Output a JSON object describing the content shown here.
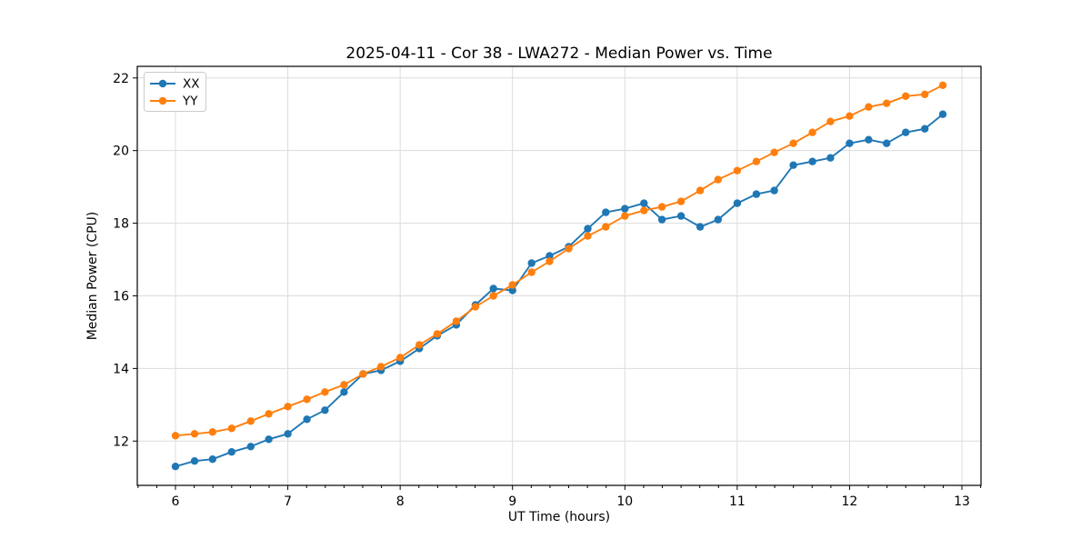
{
  "figure": {
    "title": "2025-04-11 - Cor 38 - LWA272 - Median Power vs. Time",
    "xlabel": "UT Time (hours)",
    "ylabel": "Median Power (CPU)"
  },
  "legend": {
    "entries": [
      {
        "label": "XX",
        "color": "#1f77b4"
      },
      {
        "label": "YY",
        "color": "#ff7f0e"
      }
    ]
  },
  "colors": {
    "series_xx": "#1f77b4",
    "series_yy": "#ff7f0e",
    "grid": "#dcdcdc",
    "spine": "#000000",
    "background": "#ffffff",
    "legend_border": "#cccccc"
  },
  "chart_data": {
    "type": "line",
    "title": "2025-04-11 - Cor 38 - LWA272 - Median Power vs. Time",
    "xlabel": "UT Time (hours)",
    "ylabel": "Median Power (CPU)",
    "xlim": [
      5.66,
      13.17
    ],
    "ylim": [
      10.78,
      22.32
    ],
    "xticks": [
      6,
      7,
      8,
      9,
      10,
      11,
      12,
      13
    ],
    "yticks": [
      12,
      14,
      16,
      18,
      20,
      22
    ],
    "minor_xtick_step": 0.16667,
    "grid": true,
    "legend_position": "upper left",
    "marker": "circle",
    "x": [
      6.0,
      6.17,
      6.33,
      6.5,
      6.67,
      6.83,
      7.0,
      7.17,
      7.33,
      7.5,
      7.67,
      7.83,
      8.0,
      8.17,
      8.33,
      8.5,
      8.67,
      8.83,
      9.0,
      9.17,
      9.33,
      9.5,
      9.67,
      9.83,
      10.0,
      10.17,
      10.33,
      10.5,
      10.67,
      10.83,
      11.0,
      11.17,
      11.33,
      11.5,
      11.67,
      11.83,
      12.0,
      12.17,
      12.33,
      12.5,
      12.67,
      12.83
    ],
    "series": [
      {
        "name": "XX",
        "color": "#1f77b4",
        "values": [
          11.3,
          11.45,
          11.5,
          11.7,
          11.85,
          12.05,
          12.2,
          12.6,
          12.85,
          13.35,
          13.85,
          13.95,
          14.2,
          14.55,
          14.9,
          15.2,
          15.75,
          16.2,
          16.15,
          16.9,
          17.1,
          17.35,
          17.85,
          18.3,
          18.4,
          18.55,
          18.1,
          18.2,
          17.9,
          18.1,
          18.55,
          18.8,
          18.9,
          19.6,
          19.7,
          19.8,
          20.2,
          20.3,
          20.2,
          20.5,
          20.6,
          21.0
        ]
      },
      {
        "name": "YY",
        "color": "#ff7f0e",
        "values": [
          12.15,
          12.2,
          12.25,
          12.35,
          12.55,
          12.75,
          12.95,
          13.15,
          13.35,
          13.55,
          13.85,
          14.05,
          14.3,
          14.65,
          14.95,
          15.3,
          15.7,
          16.0,
          16.3,
          16.65,
          16.95,
          17.3,
          17.65,
          17.9,
          18.2,
          18.35,
          18.45,
          18.6,
          18.9,
          19.2,
          19.45,
          19.7,
          19.95,
          20.2,
          20.5,
          20.8,
          20.95,
          21.2,
          21.3,
          21.5,
          21.55,
          21.8
        ]
      }
    ]
  }
}
